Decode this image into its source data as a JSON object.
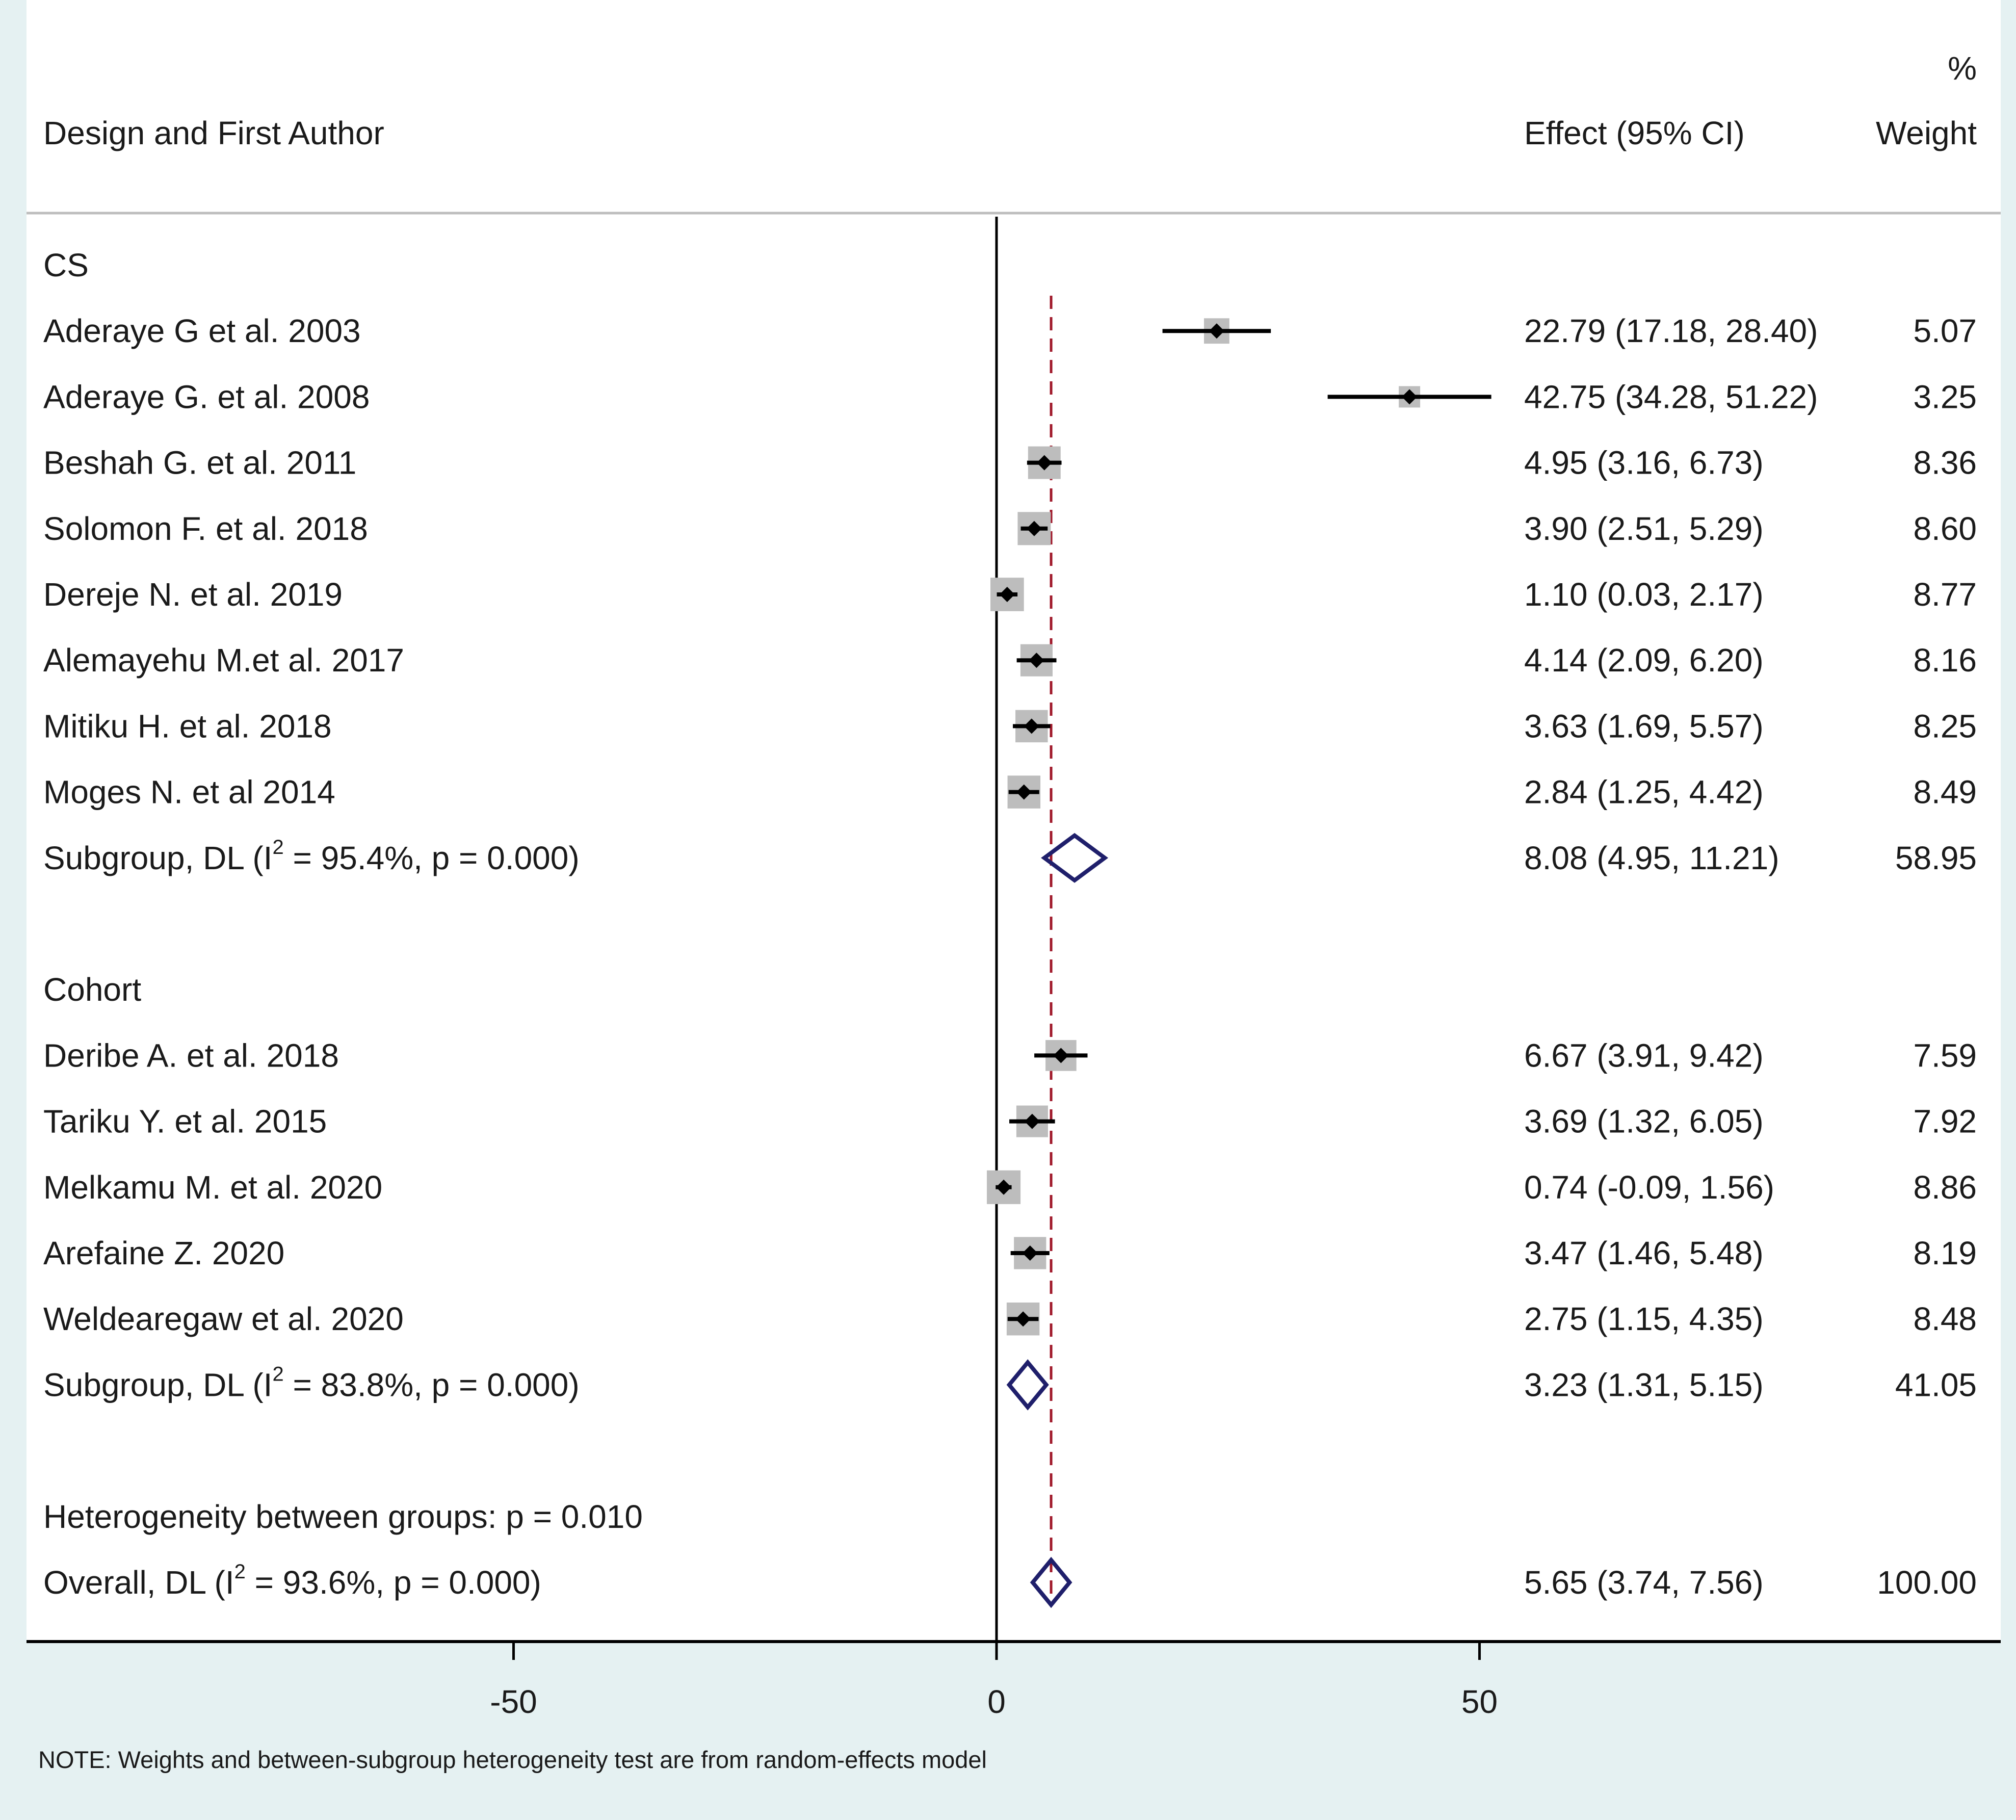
{
  "chart_data": {
    "type": "forest",
    "header": {
      "study_col": "Design and First Author",
      "effect_col": "Effect (95% CI)",
      "weight_col_line1": "%",
      "weight_col_line2": "Weight"
    },
    "x_axis": {
      "min": -100,
      "max": 100,
      "ticks": [
        -50,
        0,
        50
      ],
      "tick_labels": [
        "-50",
        "0",
        "50"
      ]
    },
    "overall_effect_line": 5.65,
    "rows": [
      {
        "kind": "group",
        "label": "CS"
      },
      {
        "kind": "study",
        "label": "Aderaye G et al. 2003",
        "effect": 22.79,
        "lo": 17.18,
        "hi": 28.4,
        "weight": 5.07,
        "effect_text": "22.79 (17.18, 28.40)",
        "weight_text": "5.07"
      },
      {
        "kind": "study",
        "label": "Aderaye G. et al. 2008",
        "effect": 42.75,
        "lo": 34.28,
        "hi": 51.22,
        "weight": 3.25,
        "effect_text": "42.75 (34.28, 51.22)",
        "weight_text": "3.25"
      },
      {
        "kind": "study",
        "label": "Beshah G. et al. 2011",
        "effect": 4.95,
        "lo": 3.16,
        "hi": 6.73,
        "weight": 8.36,
        "effect_text": "4.95 (3.16, 6.73)",
        "weight_text": "8.36"
      },
      {
        "kind": "study",
        "label": "Solomon F. et al. 2018",
        "effect": 3.9,
        "lo": 2.51,
        "hi": 5.29,
        "weight": 8.6,
        "effect_text": "3.90 (2.51, 5.29)",
        "weight_text": "8.60"
      },
      {
        "kind": "study",
        "label": "Dereje N. et al. 2019",
        "effect": 1.1,
        "lo": 0.03,
        "hi": 2.17,
        "weight": 8.77,
        "effect_text": "1.10 (0.03, 2.17)",
        "weight_text": "8.77"
      },
      {
        "kind": "study",
        "label": "Alemayehu M.et al. 2017",
        "effect": 4.14,
        "lo": 2.09,
        "hi": 6.2,
        "weight": 8.16,
        "effect_text": "4.14 (2.09, 6.20)",
        "weight_text": "8.16"
      },
      {
        "kind": "study",
        "label": "Mitiku H. et al. 2018",
        "effect": 3.63,
        "lo": 1.69,
        "hi": 5.57,
        "weight": 8.25,
        "effect_text": "3.63 (1.69, 5.57)",
        "weight_text": "8.25"
      },
      {
        "kind": "study",
        "label": "Moges N. et al 2014",
        "effect": 2.84,
        "lo": 1.25,
        "hi": 4.42,
        "weight": 8.49,
        "effect_text": "2.84 (1.25, 4.42)",
        "weight_text": "8.49"
      },
      {
        "kind": "subgroup",
        "label_pre": "Subgroup, DL (I",
        "label_sup": "2",
        "label_post": " = 95.4%, p = 0.000)",
        "effect": 8.08,
        "lo": 4.95,
        "hi": 11.21,
        "effect_text": "8.08 (4.95, 11.21)",
        "weight_text": "58.95"
      },
      {
        "kind": "blank"
      },
      {
        "kind": "group",
        "label": "Cohort"
      },
      {
        "kind": "study",
        "label": "Deribe A.  et al. 2018",
        "effect": 6.67,
        "lo": 3.91,
        "hi": 9.42,
        "weight": 7.59,
        "effect_text": "6.67 (3.91, 9.42)",
        "weight_text": "7.59"
      },
      {
        "kind": "study",
        "label": "Tariku Y. et al. 2015",
        "effect": 3.69,
        "lo": 1.32,
        "hi": 6.05,
        "weight": 7.92,
        "effect_text": "3.69 (1.32, 6.05)",
        "weight_text": "7.92"
      },
      {
        "kind": "study",
        "label": "Melkamu M. et al. 2020",
        "effect": 0.74,
        "lo": -0.09,
        "hi": 1.56,
        "weight": 8.86,
        "effect_text": "0.74 (-0.09, 1.56)",
        "weight_text": "8.86"
      },
      {
        "kind": "study",
        "label": "Arefaine Z. 2020",
        "effect": 3.47,
        "lo": 1.46,
        "hi": 5.48,
        "weight": 8.19,
        "effect_text": "3.47 (1.46, 5.48)",
        "weight_text": "8.19"
      },
      {
        "kind": "study",
        "label": "Weldearegaw et al. 2020",
        "effect": 2.75,
        "lo": 1.15,
        "hi": 4.35,
        "weight": 8.48,
        "effect_text": "2.75 (1.15, 4.35)",
        "weight_text": "8.48"
      },
      {
        "kind": "subgroup",
        "label_pre": "Subgroup, DL (I",
        "label_sup": "2",
        "label_post": " = 83.8%, p = 0.000)",
        "effect": 3.23,
        "lo": 1.31,
        "hi": 5.15,
        "effect_text": "3.23 (1.31, 5.15)",
        "weight_text": "41.05"
      },
      {
        "kind": "blank"
      },
      {
        "kind": "note",
        "label": "Heterogeneity between groups: p = 0.010"
      },
      {
        "kind": "overall",
        "label_pre": "Overall, DL (I",
        "label_sup": "2",
        "label_post": " = 93.6%, p = 0.000)",
        "effect": 5.65,
        "lo": 3.74,
        "hi": 7.56,
        "effect_text": "5.65 (3.74, 7.56)",
        "weight_text": "100.00"
      }
    ],
    "footnote": "NOTE: Weights and between-subgroup heterogeneity test are from random-effects model",
    "colors": {
      "background_outer": "#e5f1f2",
      "panel": "#ffffff",
      "box_fill": "#bdbdbd",
      "ci_line": "#000000",
      "diamond": "#1f1f6b",
      "null_line": "#000000",
      "overall_line": "#a0182a"
    }
  }
}
